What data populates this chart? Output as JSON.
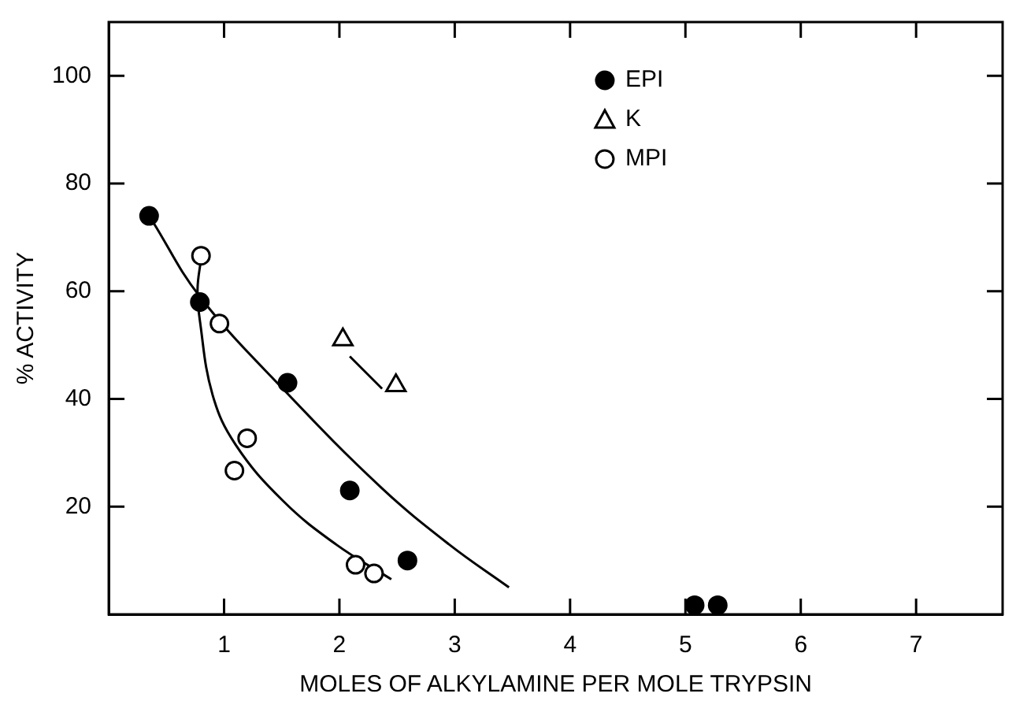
{
  "chart_data": {
    "type": "scatter",
    "xlabel": "MOLES OF ALKYLAMINE PER MOLE TRYPSIN",
    "ylabel": "% ACTIVITY",
    "xlim": [
      0,
      7.75
    ],
    "xticks": [
      1,
      2,
      3,
      4,
      5,
      6,
      7
    ],
    "ylim": [
      0,
      110
    ],
    "yticks": [
      20,
      40,
      60,
      80,
      100
    ],
    "grid": false,
    "legend": "top right",
    "series": [
      {
        "name": "EPI",
        "color": "#000000",
        "marker": "circle",
        "x": [
          0.35,
          0.79,
          1.55,
          2.09,
          2.59,
          5.08,
          5.28
        ],
        "values": [
          74,
          58,
          43,
          23,
          10,
          1.7,
          1.7
        ]
      },
      {
        "name": "K",
        "color": "#ffffff",
        "marker": "triangle",
        "x": [
          2.03,
          2.49
        ],
        "values": [
          51,
          42.5
        ]
      },
      {
        "name": "MPI",
        "color": "#ffffff",
        "marker": "circle",
        "x": [
          0.8,
          0.96,
          1.2,
          1.09,
          2.14,
          2.3
        ],
        "values": [
          66.6,
          54,
          32.7,
          26.7,
          9.2,
          7.6
        ]
      },
      {
        "type": "line",
        "color": "#000000",
        "marker": "none",
        "x": [
          0.38,
          0.79,
          1.55,
          2.37,
          2.95,
          3.47
        ],
        "values": [
          73,
          59,
          41,
          23.4,
          13,
          5
        ]
      },
      {
        "type": "line",
        "color": "#000000",
        "marker": "none",
        "x": [
          0.8,
          0.77,
          0.79,
          0.9,
          1.1,
          1.51,
          1.97,
          2.45
        ],
        "values": [
          66,
          60.4,
          54.6,
          40.8,
          31.5,
          21.1,
          13,
          6.5
        ]
      },
      {
        "type": "line",
        "color": "#000000",
        "marker": "none",
        "x": [
          2.09,
          2.37
        ],
        "values": [
          47.9,
          41.9
        ]
      }
    ]
  }
}
